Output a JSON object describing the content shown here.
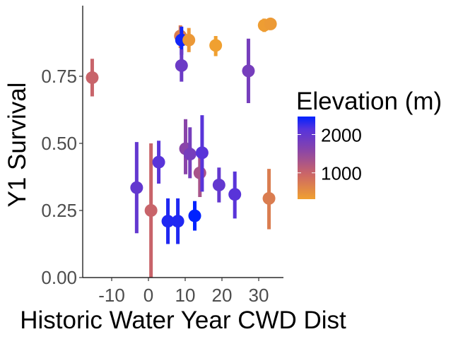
{
  "chart_data": {
    "type": "scatter",
    "title": "",
    "xlabel": "Historic Water Year CWD Dist",
    "ylabel": "Y1 Survival",
    "xlim": [
      -16,
      35
    ],
    "ylim": [
      0,
      0.97
    ],
    "xticks": [
      -10,
      0,
      10,
      20,
      30
    ],
    "xtick_labels": [
      "-10",
      "0",
      "10",
      "20",
      "30"
    ],
    "yticks": [
      0,
      0.25,
      0.5,
      0.75
    ],
    "ytick_labels": [
      "0.00",
      "0.25",
      "0.50",
      "0.75"
    ],
    "grid": false,
    "error_bars": true,
    "legend": {
      "title": "Elevation (m)",
      "position": "right",
      "labels": [
        "2000",
        "1000"
      ],
      "values": [
        2000,
        1000
      ],
      "range": [
        313,
        2470
      ],
      "colors": [
        "#F0A030",
        "#CC6666",
        "#8844AA",
        "#5533DD",
        "#0022FF"
      ]
    },
    "points": [
      {
        "x": -15.3,
        "y": 0.745,
        "lo": 0.675,
        "hi": 0.815,
        "elev": 1000
      },
      {
        "x": -3.2,
        "y": 0.335,
        "lo": 0.165,
        "hi": 0.505,
        "elev": 2000
      },
      {
        "x": 0.7,
        "y": 0.25,
        "lo": 0.0,
        "hi": 0.5,
        "elev": 1000
      },
      {
        "x": 2.8,
        "y": 0.43,
        "lo": 0.35,
        "hi": 0.51,
        "elev": 2100
      },
      {
        "x": 5.3,
        "y": 0.21,
        "lo": 0.125,
        "hi": 0.295,
        "elev": 2350
      },
      {
        "x": 8.0,
        "y": 0.21,
        "lo": 0.125,
        "hi": 0.295,
        "elev": 2350
      },
      {
        "x": 8.7,
        "y": 0.9,
        "lo": 0.855,
        "hi": 0.94,
        "elev": 700
      },
      {
        "x": 9.0,
        "y": 0.885,
        "lo": 0.83,
        "hi": 0.935,
        "elev": 2400
      },
      {
        "x": 9.0,
        "y": 0.79,
        "lo": 0.73,
        "hi": 0.85,
        "elev": 1900
      },
      {
        "x": 10.1,
        "y": 0.48,
        "lo": 0.385,
        "hi": 0.59,
        "elev": 1600
      },
      {
        "x": 11.0,
        "y": 0.885,
        "lo": 0.84,
        "hi": 0.93,
        "elev": 400
      },
      {
        "x": 11.3,
        "y": 0.46,
        "lo": 0.37,
        "hi": 0.56,
        "elev": 1800
      },
      {
        "x": 12.6,
        "y": 0.23,
        "lo": 0.175,
        "hi": 0.285,
        "elev": 2470
      },
      {
        "x": 14.0,
        "y": 0.39,
        "lo": 0.3,
        "hi": 0.48,
        "elev": 1300
      },
      {
        "x": 14.6,
        "y": 0.465,
        "lo": 0.32,
        "hi": 0.605,
        "elev": 2100
      },
      {
        "x": 18.3,
        "y": 0.865,
        "lo": 0.825,
        "hi": 0.9,
        "elev": 313
      },
      {
        "x": 19.2,
        "y": 0.345,
        "lo": 0.28,
        "hi": 0.41,
        "elev": 2000
      },
      {
        "x": 23.5,
        "y": 0.31,
        "lo": 0.22,
        "hi": 0.395,
        "elev": 2100
      },
      {
        "x": 27.2,
        "y": 0.77,
        "lo": 0.65,
        "hi": 0.89,
        "elev": 1800
      },
      {
        "x": 31.5,
        "y": 0.94,
        "lo": 0.915,
        "hi": 0.965,
        "elev": 350
      },
      {
        "x": 32.8,
        "y": 0.295,
        "lo": 0.18,
        "hi": 0.405,
        "elev": 700
      },
      {
        "x": 33.2,
        "y": 0.945,
        "lo": 0.925,
        "hi": 0.965,
        "elev": 380
      }
    ]
  }
}
